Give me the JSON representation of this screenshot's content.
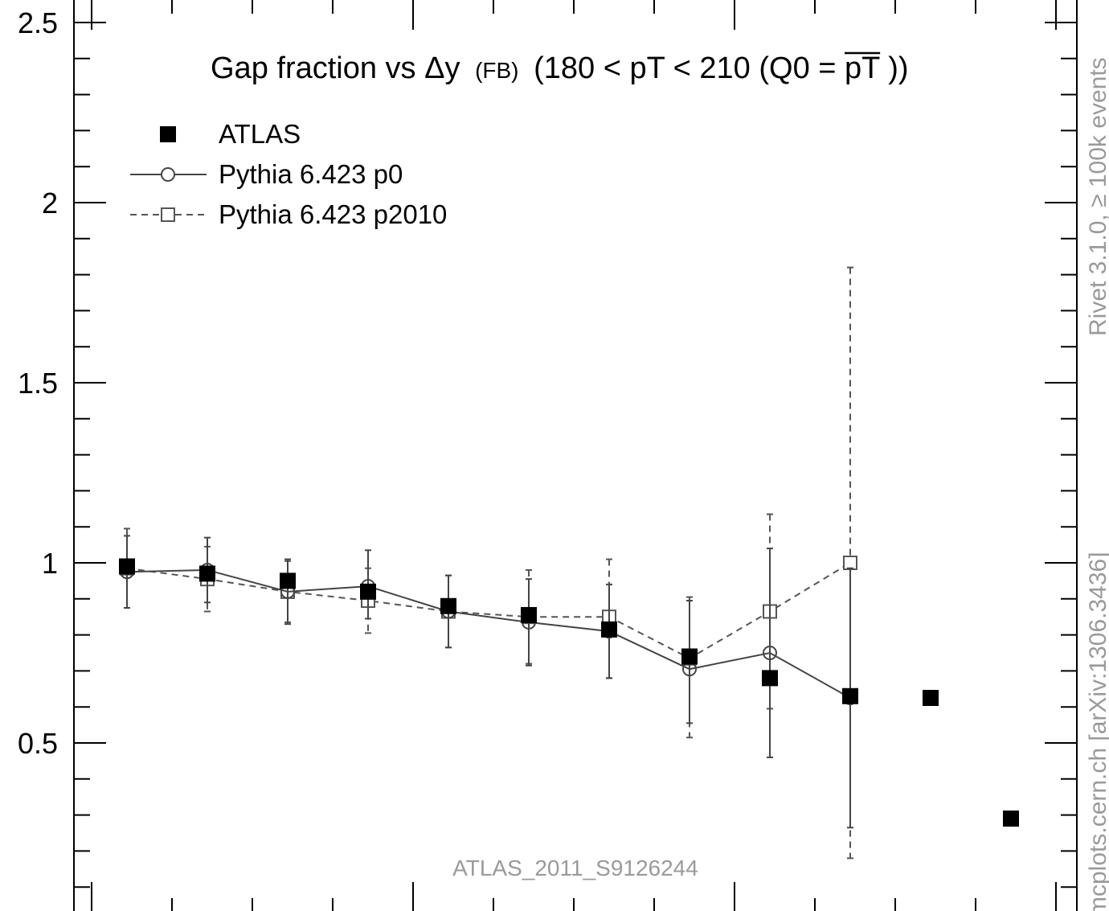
{
  "chart_data": {
    "type": "scatter",
    "title": "Gap fraction vsΔy",
    "title_parts": {
      "main": "Gap fraction vs",
      "symbol": "Δy",
      "qualifier": "(FB)",
      "range": "(180 < pT < 210 (Q0 =",
      "overlined": "pT",
      "close": "))"
    },
    "xlabel": "",
    "ylabel": "",
    "xlim": [
      0,
      12
    ],
    "ylim": [
      0.08,
      2.6
    ],
    "y_ticks": [
      "0.5",
      "1",
      "1.5",
      "2",
      "2.5"
    ],
    "y_tick_values": [
      0.5,
      1,
      1.5,
      2,
      2.5
    ],
    "grid": false,
    "legend_position": "top-left",
    "analysis_label": "ATLAS_2011_S9126244",
    "side_labels": {
      "top": "Rivet 3.1.0, ≥ 100k events",
      "bottom": "mcplots.cern.ch [arXiv:1306.3436]"
    },
    "series": [
      {
        "name": "ATLAS",
        "style": "filled-square",
        "color": "#000000",
        "x": [
          0.5,
          1.5,
          2.5,
          3.5,
          4.5,
          5.5,
          6.5,
          7.5,
          8.5,
          9.5,
          10.5,
          11.5
        ],
        "y": [
          0.99,
          0.97,
          0.95,
          0.92,
          0.88,
          0.855,
          0.815,
          0.74,
          0.68,
          0.63,
          0.625,
          0.29
        ]
      },
      {
        "name": "Pythia 6.423 p0",
        "style": "solid-circle",
        "color": "#444444",
        "x": [
          0.5,
          1.5,
          2.5,
          3.5,
          4.5,
          5.5,
          6.5,
          7.5,
          8.5,
          9.5
        ],
        "y": [
          0.975,
          0.98,
          0.92,
          0.935,
          0.865,
          0.835,
          0.81,
          0.705,
          0.75,
          0.625
        ],
        "err_lo": [
          0.1,
          0.09,
          0.09,
          0.09,
          0.1,
          0.12,
          0.13,
          0.15,
          0.29,
          0.36
        ],
        "err_hi": [
          0.1,
          0.09,
          0.09,
          0.1,
          0.1,
          0.12,
          0.13,
          0.19,
          0.29,
          0.36
        ]
      },
      {
        "name": "Pythia 6.423 p2010",
        "style": "dashed-open-square",
        "color": "#555555",
        "x": [
          0.5,
          1.5,
          2.5,
          3.5,
          4.5,
          5.5,
          6.5,
          7.5,
          8.5,
          9.5
        ],
        "y": [
          0.985,
          0.955,
          0.92,
          0.895,
          0.865,
          0.85,
          0.85,
          0.735,
          0.865,
          1.0
        ],
        "err_lo": [
          0.11,
          0.09,
          0.085,
          0.09,
          0.1,
          0.13,
          0.17,
          0.22,
          0.27,
          0.82
        ],
        "err_hi": [
          0.11,
          0.09,
          0.085,
          0.09,
          0.1,
          0.13,
          0.16,
          0.17,
          0.27,
          0.82
        ]
      }
    ]
  }
}
